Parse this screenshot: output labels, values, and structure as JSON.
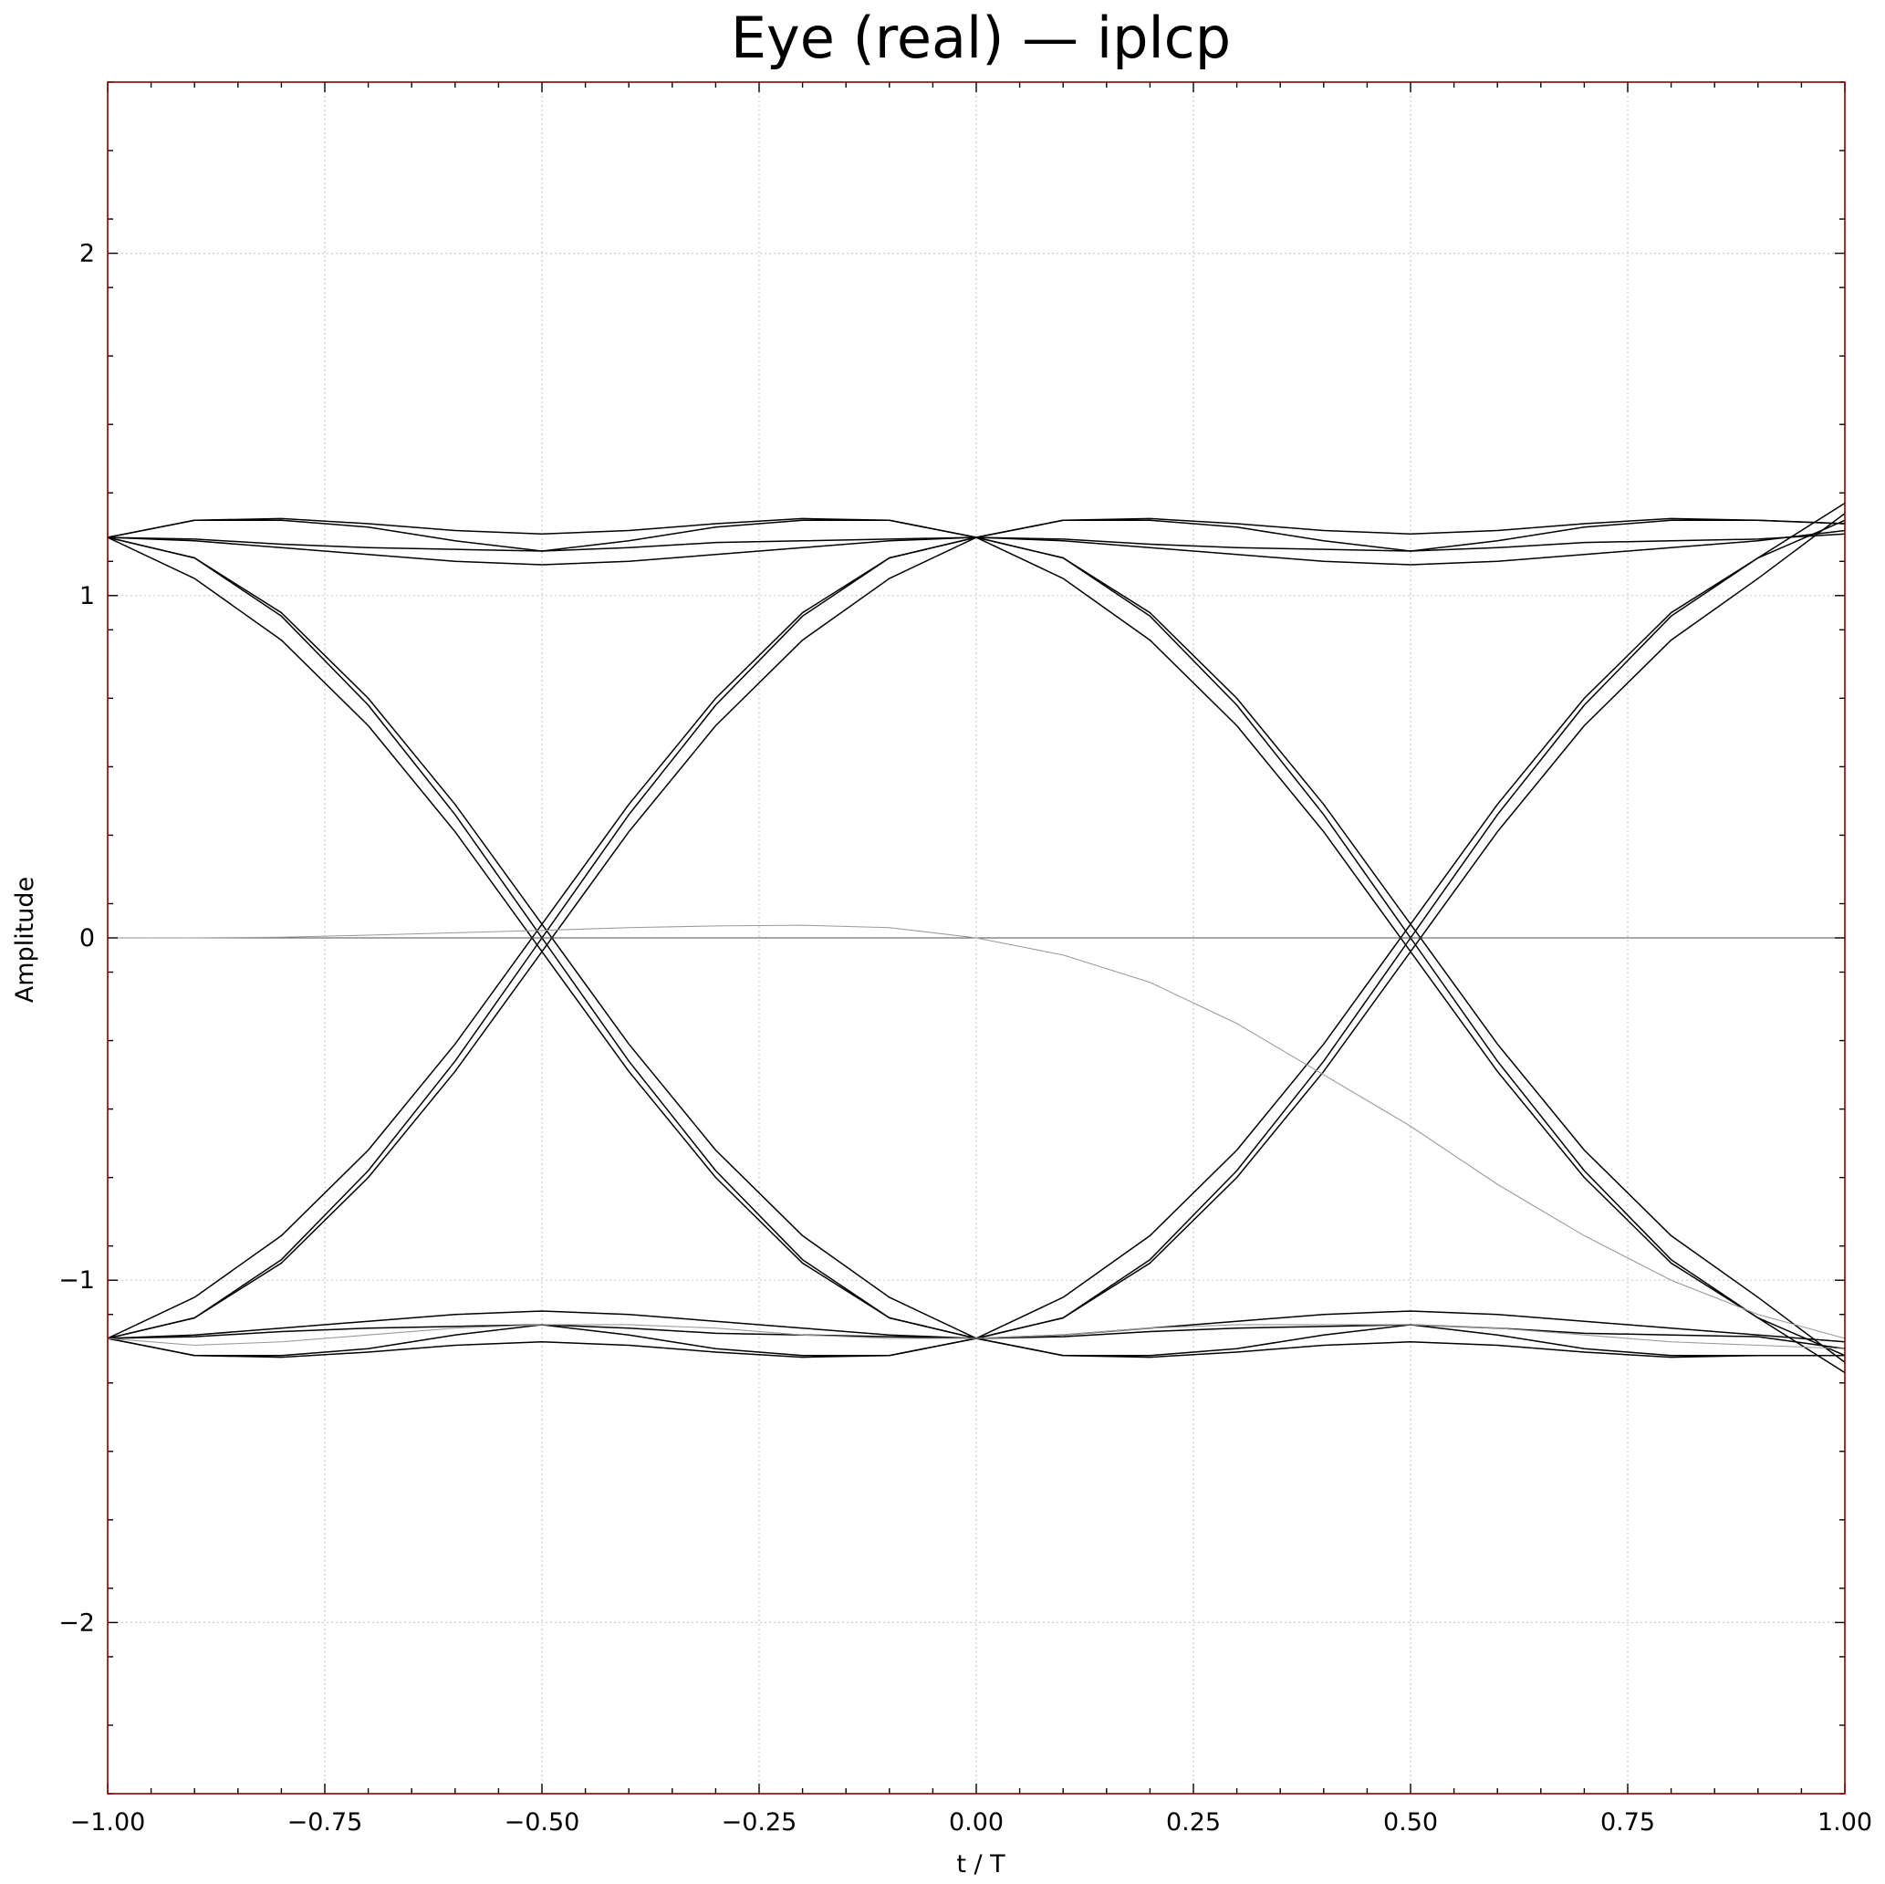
{
  "chart_data": {
    "type": "line",
    "title": "Eye (real) — iplcp",
    "xlabel": "t / T",
    "ylabel": "Amplitude",
    "xlim": [
      -1.0,
      1.0
    ],
    "ylim": [
      -2.5,
      2.5
    ],
    "xticks": [
      -1.0,
      -0.75,
      -0.5,
      -0.25,
      0.0,
      0.25,
      0.5,
      0.75,
      1.0
    ],
    "xtick_labels": [
      "−1.00",
      "−0.75",
      "−0.50",
      "−0.25",
      "0.00",
      "0.25",
      "0.50",
      "0.75",
      "1.00"
    ],
    "yticks": [
      -2,
      -1,
      0,
      1,
      2
    ],
    "ytick_labels": [
      "−2",
      "−1",
      "0",
      "1",
      "2"
    ],
    "grid": true,
    "colors": {
      "traces": "#000000",
      "faint_trace": "#9a9a9a",
      "zero_line": "#555555",
      "frame": "#8b0000",
      "grid": "#cccccc"
    },
    "x": [
      -1.0,
      -0.9,
      -0.8,
      -0.7,
      -0.6,
      -0.5,
      -0.4,
      -0.3,
      -0.2,
      -0.1,
      0.0,
      0.1,
      0.2,
      0.3,
      0.4,
      0.5,
      0.6,
      0.7,
      0.8,
      0.9,
      1.0
    ],
    "series": [
      {
        "values": [
          1.17,
          1.22,
          1.225,
          1.21,
          1.19,
          1.18,
          1.19,
          1.21,
          1.225,
          1.22,
          1.17,
          1.22,
          1.225,
          1.21,
          1.19,
          1.18,
          1.19,
          1.21,
          1.225,
          1.22,
          1.21
        ]
      },
      {
        "values": [
          1.17,
          1.165,
          1.15,
          1.14,
          1.135,
          1.13,
          1.14,
          1.155,
          1.16,
          1.165,
          1.17,
          1.165,
          1.15,
          1.14,
          1.135,
          1.13,
          1.14,
          1.155,
          1.16,
          1.165,
          1.18
        ]
      },
      {
        "values": [
          1.17,
          1.16,
          1.14,
          1.12,
          1.1,
          1.09,
          1.1,
          1.12,
          1.14,
          1.16,
          1.17,
          1.16,
          1.14,
          1.12,
          1.1,
          1.09,
          1.1,
          1.12,
          1.14,
          1.16,
          1.19
        ]
      },
      {
        "values": [
          1.17,
          1.22,
          1.22,
          1.2,
          1.16,
          1.13,
          1.16,
          1.2,
          1.22,
          1.22,
          1.17,
          1.22,
          1.22,
          1.2,
          1.16,
          1.13,
          1.16,
          1.2,
          1.22,
          1.22,
          1.21
        ]
      },
      {
        "values": [
          -1.17,
          -1.22,
          -1.225,
          -1.21,
          -1.19,
          -1.18,
          -1.19,
          -1.21,
          -1.225,
          -1.22,
          -1.17,
          -1.22,
          -1.225,
          -1.21,
          -1.19,
          -1.18,
          -1.19,
          -1.21,
          -1.225,
          -1.22,
          -1.22
        ]
      },
      {
        "values": [
          -1.17,
          -1.165,
          -1.15,
          -1.14,
          -1.135,
          -1.13,
          -1.14,
          -1.155,
          -1.16,
          -1.165,
          -1.17,
          -1.165,
          -1.15,
          -1.14,
          -1.135,
          -1.13,
          -1.14,
          -1.155,
          -1.16,
          -1.165,
          -1.2
        ]
      },
      {
        "values": [
          -1.17,
          -1.16,
          -1.14,
          -1.12,
          -1.1,
          -1.09,
          -1.1,
          -1.12,
          -1.14,
          -1.16,
          -1.17,
          -1.16,
          -1.14,
          -1.12,
          -1.1,
          -1.09,
          -1.1,
          -1.12,
          -1.14,
          -1.16,
          -1.18
        ]
      },
      {
        "values": [
          -1.17,
          -1.22,
          -1.22,
          -1.2,
          -1.16,
          -1.13,
          -1.16,
          -1.2,
          -1.22,
          -1.22,
          -1.17,
          -1.22,
          -1.22,
          -1.2,
          -1.16,
          -1.13,
          -1.16,
          -1.2,
          -1.22,
          -1.22,
          -1.22
        ]
      },
      {
        "values": [
          1.17,
          1.11,
          0.95,
          0.7,
          0.39,
          0.04,
          -0.31,
          -0.62,
          -0.87,
          -1.05,
          -1.17,
          -1.05,
          -0.87,
          -0.62,
          -0.31,
          0.04,
          0.39,
          0.7,
          0.95,
          1.11,
          1.27
        ]
      },
      {
        "values": [
          1.17,
          1.05,
          0.87,
          0.62,
          0.31,
          -0.04,
          -0.39,
          -0.7,
          -0.95,
          -1.11,
          -1.17,
          -1.11,
          -0.95,
          -0.7,
          -0.39,
          -0.04,
          0.31,
          0.62,
          0.87,
          1.05,
          1.24
        ]
      },
      {
        "values": [
          1.17,
          1.11,
          0.94,
          0.68,
          0.36,
          0.0,
          -0.36,
          -0.68,
          -0.94,
          -1.11,
          -1.17,
          -1.11,
          -0.94,
          -0.68,
          -0.36,
          0.0,
          0.36,
          0.68,
          0.94,
          1.11,
          1.22
        ]
      },
      {
        "values": [
          -1.17,
          -1.11,
          -0.95,
          -0.7,
          -0.39,
          -0.04,
          0.31,
          0.62,
          0.87,
          1.05,
          1.17,
          1.05,
          0.87,
          0.62,
          0.31,
          -0.04,
          -0.39,
          -0.7,
          -0.95,
          -1.11,
          -1.27
        ]
      },
      {
        "values": [
          -1.17,
          -1.05,
          -0.87,
          -0.62,
          -0.31,
          0.04,
          0.39,
          0.7,
          0.95,
          1.11,
          1.17,
          1.11,
          0.95,
          0.7,
          0.39,
          0.04,
          -0.31,
          -0.62,
          -0.87,
          -1.05,
          -1.24
        ]
      },
      {
        "values": [
          -1.17,
          -1.11,
          -0.94,
          -0.68,
          -0.36,
          0.0,
          0.36,
          0.68,
          0.94,
          1.11,
          1.17,
          1.11,
          0.94,
          0.68,
          0.36,
          0.0,
          -0.36,
          -0.68,
          -0.94,
          -1.11,
          -1.22
        ]
      },
      {
        "values": [
          0.0,
          0.0,
          0.0,
          0.0,
          0.0,
          0.0,
          0.0,
          0.0,
          0.0,
          0.0,
          0.0,
          0.0,
          0.0,
          0.0,
          0.0,
          0.0,
          0.0,
          0.0,
          0.0,
          0.0,
          0.0
        ],
        "color": "#555555"
      },
      {
        "values": [
          0.0,
          0.0,
          0.002,
          0.008,
          0.015,
          0.022,
          0.03,
          0.035,
          0.037,
          0.03,
          0.0,
          -0.05,
          -0.13,
          -0.25,
          -0.4,
          -0.55,
          -0.72,
          -0.87,
          -1.0,
          -1.1,
          -1.17
        ],
        "color": "#9a9a9a"
      },
      {
        "values": [
          -1.17,
          -1.19,
          -1.18,
          -1.16,
          -1.14,
          -1.13,
          -1.13,
          -1.14,
          -1.16,
          -1.17,
          -1.17,
          -1.16,
          -1.14,
          -1.13,
          -1.13,
          -1.13,
          -1.14,
          -1.16,
          -1.18,
          -1.19,
          -1.2
        ],
        "color": "#9a9a9a"
      }
    ]
  }
}
